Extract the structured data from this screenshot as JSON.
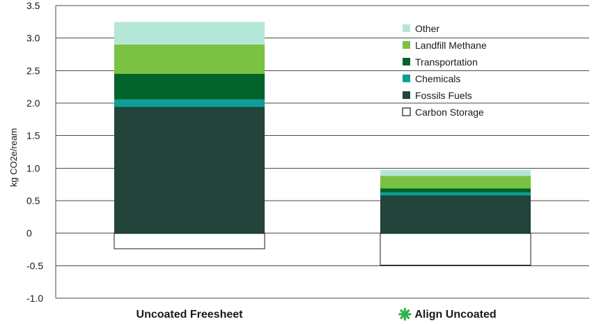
{
  "chart_data": {
    "type": "bar",
    "stacked": true,
    "title": "",
    "xlabel": "",
    "ylabel": "kg CO2e/ream",
    "ylim": [
      -1.0,
      3.5
    ],
    "yticks": [
      3.5,
      3.0,
      2.5,
      2.0,
      1.5,
      1.0,
      0.5,
      0,
      -0.5,
      -1.0
    ],
    "ytick_labels": [
      "3.5",
      "3.0",
      "2.5",
      "2.0",
      "1.5",
      "1.0",
      "0.5",
      "0",
      "-0.5",
      "-1.0"
    ],
    "grid": "horizontal",
    "legend_position": "top-right",
    "categories": [
      "Uncoated Freesheet",
      "Align Uncoated"
    ],
    "category_marks": [
      "",
      "asterisk-logo-icon"
    ],
    "series": [
      {
        "name": "Carbon Storage",
        "color": "#ffffff",
        "values": [
          -0.24,
          -0.49
        ]
      },
      {
        "name": "Fossils Fuels",
        "color": "#22443a",
        "values": [
          1.94,
          0.58
        ]
      },
      {
        "name": "Chemicals",
        "color": "#0f9d98",
        "values": [
          0.12,
          0.05
        ]
      },
      {
        "name": "Transportation",
        "color": "#03642b",
        "values": [
          0.39,
          0.06
        ]
      },
      {
        "name": "Landfill Methane",
        "color": "#7bc143",
        "values": [
          0.45,
          0.19
        ]
      },
      {
        "name": "Other",
        "color": "#b5e7d6",
        "values": [
          0.35,
          0.09
        ]
      }
    ],
    "legend_order": [
      "Other",
      "Landfill Methane",
      "Transportation",
      "Chemicals",
      "Fossils Fuels",
      "Carbon Storage"
    ]
  }
}
